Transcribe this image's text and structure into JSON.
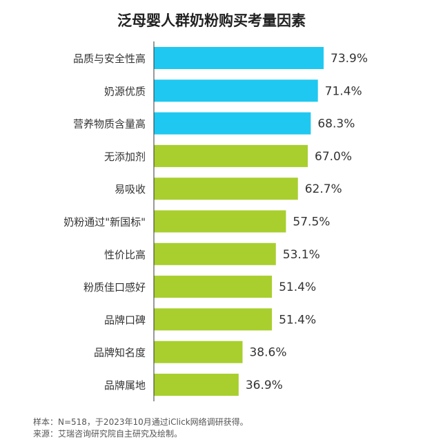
{
  "chart_data": {
    "type": "bar",
    "orientation": "horizontal",
    "title": "泛母婴人群奶粉购买考量因素",
    "categories": [
      "品质与安全性高",
      "奶源优质",
      "营养物质含量高",
      "无添加剂",
      "易吸收",
      "奶粉通过\"新国标\"",
      "性价比高",
      "粉质佳口感好",
      "品牌口碑",
      "品牌知名度",
      "品牌属地"
    ],
    "values": [
      73.9,
      71.4,
      68.3,
      67.0,
      62.7,
      57.5,
      53.1,
      51.4,
      51.4,
      38.6,
      36.9
    ],
    "value_labels": [
      "73.9%",
      "71.4%",
      "68.3%",
      "67.0%",
      "62.7%",
      "57.5%",
      "53.1%",
      "51.4%",
      "51.4%",
      "38.6%",
      "36.9%"
    ],
    "colors": [
      "#1fc8f0",
      "#1fc8f0",
      "#1fc8f0",
      "#a8cf2e",
      "#a8cf2e",
      "#a8cf2e",
      "#a8cf2e",
      "#a8cf2e",
      "#a8cf2e",
      "#a8cf2e",
      "#a8cf2e"
    ],
    "axis_color": "#333333",
    "grid": false,
    "legend": "none"
  },
  "footnote": {
    "sample": "样本：N=518，于2023年10月通过iClick网络调研获得。",
    "source": "来源：艾瑞咨询研究院自主研究及绘制。"
  }
}
